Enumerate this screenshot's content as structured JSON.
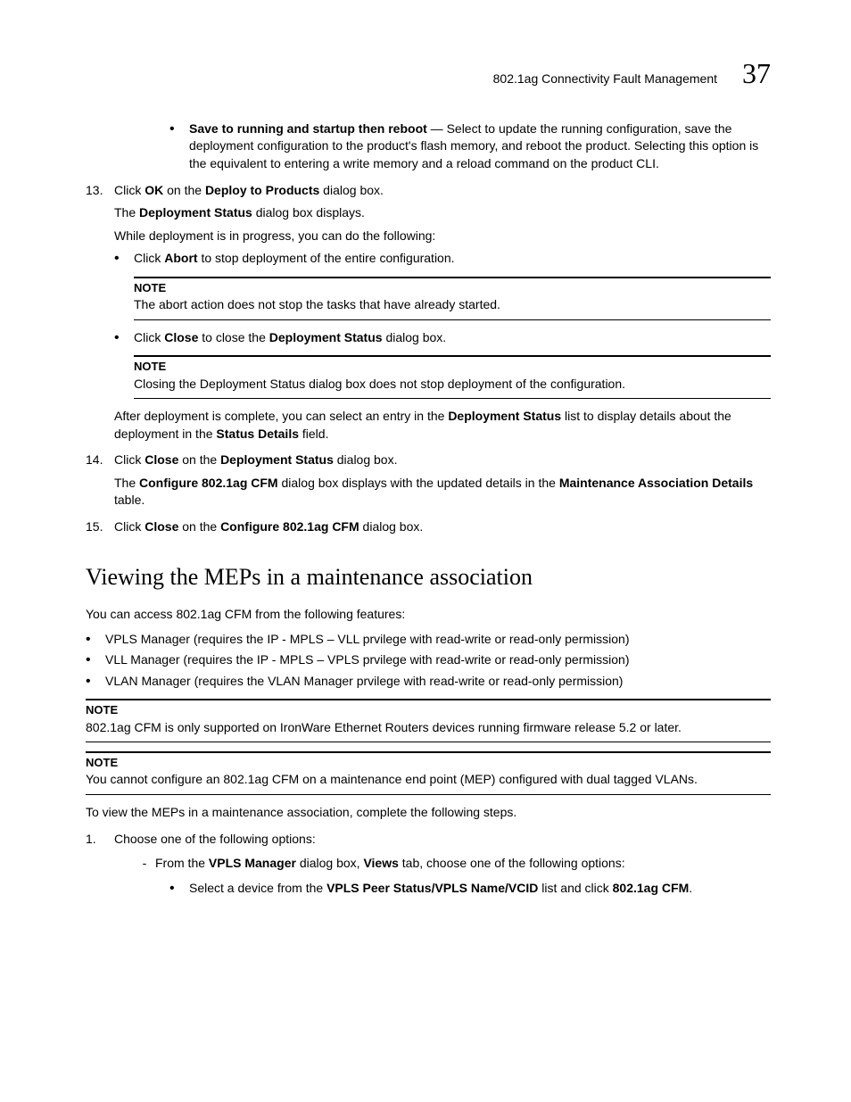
{
  "header": {
    "title": "802.1ag Connectivity Fault Management",
    "chapter": "37"
  },
  "p1": {
    "b": "Save to running and startup then reboot",
    "t": " — Select to update the running configuration, save the deployment configuration to the product's flash memory, and reboot the product. Selecting this option is the equivalent to entering a write memory and a reload command on the product CLI."
  },
  "s13": {
    "num": "13.",
    "a": "Click ",
    "b1": "OK",
    "c": " on the ",
    "b2": "Deploy to Products",
    "d": " dialog box.",
    "p2a": "The ",
    "p2b": "Deployment Status",
    "p2c": " dialog box displays.",
    "p3": "While deployment is in progress, you can do the following:",
    "bul1a": "Click ",
    "bul1b": "Abort",
    "bul1c": " to stop deployment of the entire configuration.",
    "note1_label": "NOTE",
    "note1": "The abort action does not stop the tasks that have already started.",
    "bul2a": "Click ",
    "bul2b": "Close",
    "bul2c": " to close the ",
    "bul2d": "Deployment Status",
    "bul2e": " dialog box.",
    "note2_label": "NOTE",
    "note2": "Closing the Deployment Status dialog box does not stop deployment of the configuration.",
    "p4a": "After deployment is complete, you can select an entry in the ",
    "p4b": "Deployment Status",
    "p4c": " list to display details about the deployment in the ",
    "p4d": "Status Details",
    "p4e": " field."
  },
  "s14": {
    "num": "14.",
    "a": "Click ",
    "b1": "Close",
    "c": " on the ",
    "b2": "Deployment Status",
    "d": " dialog box.",
    "p2a": "The ",
    "p2b": "Configure 802.1ag CFM",
    "p2c": " dialog box displays with the updated details in the ",
    "p2d": "Maintenance Association Details",
    "p2e": " table."
  },
  "s15": {
    "num": "15.",
    "a": "Click ",
    "b1": "Close",
    "c": " on the ",
    "b2": "Configure 802.1ag CFM",
    "d": " dialog box."
  },
  "h2": "Viewing the MEPs in a maintenance association",
  "intro": "You can access 802.1ag CFM from the following features:",
  "feat1": "VPLS Manager (requires the IP - MPLS – VLL prvilege with read-write or read-only permission)",
  "feat2": "VLL Manager (requires the IP - MPLS – VPLS prvilege with read-write or read-only permission)",
  "feat3": "VLAN Manager (requires the VLAN Manager prvilege with read-write or read-only permission)",
  "noteA_label": "NOTE",
  "noteA": "802.1ag CFM is only supported on IronWare Ethernet Routers devices running firmware release 5.2 or later.",
  "noteB_label": "NOTE",
  "noteB": "You cannot configure an 802.1ag CFM on a maintenance end point (MEP) configured with dual tagged VLANs.",
  "intro2": "To view the MEPs in a maintenance association, complete the following steps.",
  "s1": {
    "num": "1.",
    "t": "Choose one of the following options:"
  },
  "dash1": {
    "a": "From the ",
    "b1": "VPLS Manager",
    "c": " dialog box, ",
    "b2": "Views",
    "d": " tab, choose one of the following options:"
  },
  "sub1": {
    "a": "Select a device from the ",
    "b1": "VPLS Peer Status/VPLS Name/VCID",
    "c": " list and click ",
    "b2": "802.1ag CFM",
    "d": "."
  }
}
